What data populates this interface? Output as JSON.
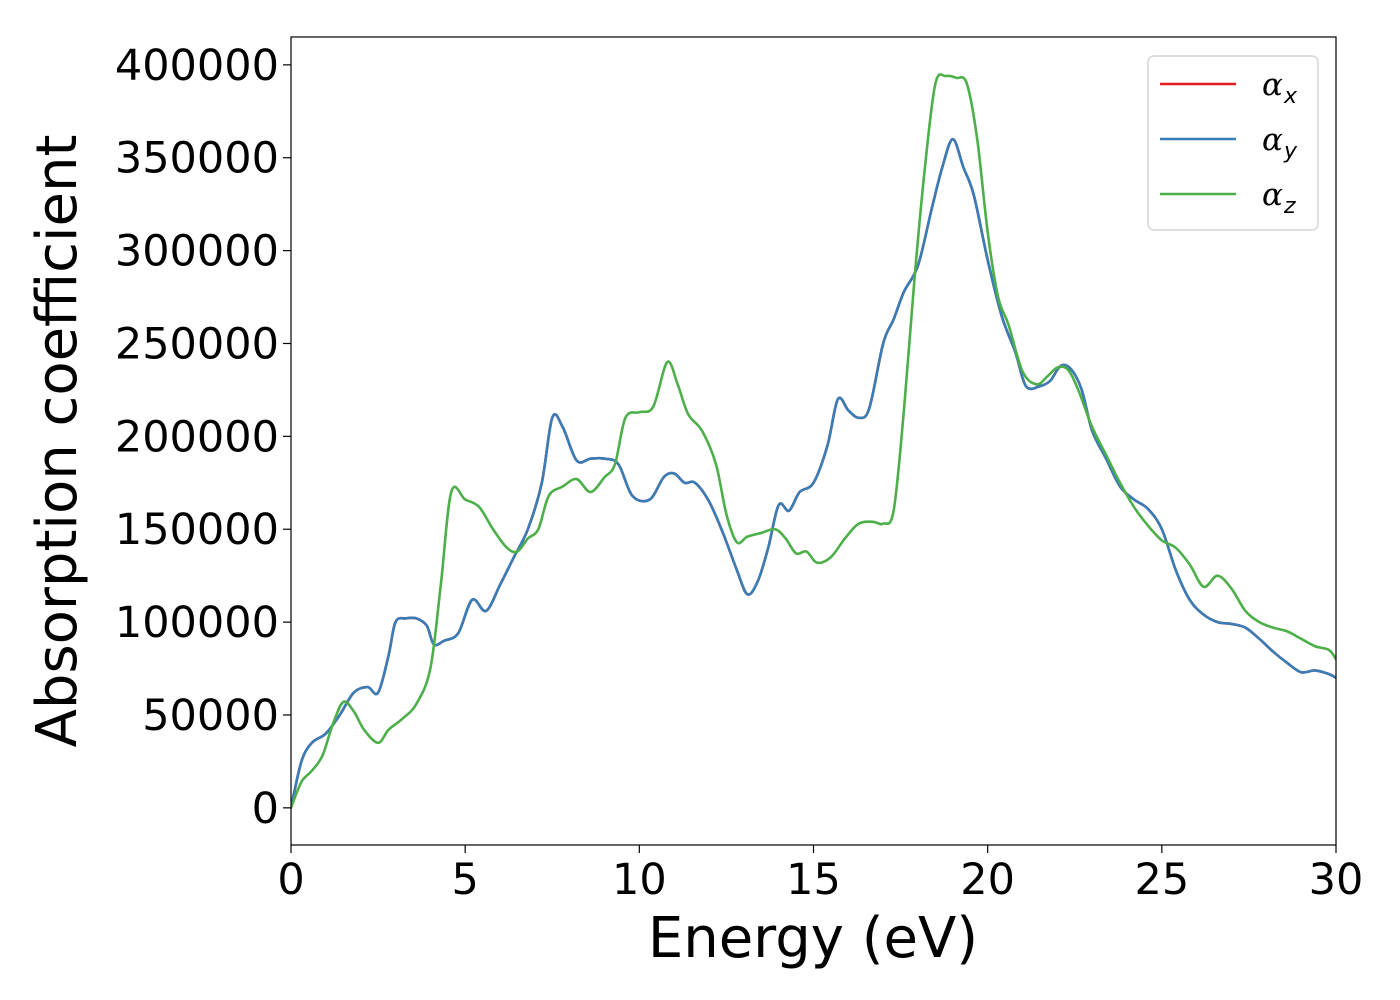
{
  "chart_data": {
    "type": "line",
    "title": "",
    "xlabel": "Energy (eV)",
    "ylabel": "Absorption coefficient",
    "xlim": [
      0,
      30
    ],
    "ylim": [
      -20000,
      415000
    ],
    "xticks": [
      "0",
      "5",
      "10",
      "15",
      "20",
      "25",
      "30"
    ],
    "yticks": [
      "0",
      "50000",
      "100000",
      "150000",
      "200000",
      "250000",
      "300000",
      "350000",
      "400000"
    ],
    "grid": false,
    "legend_position": "top-right",
    "colors": {
      "alpha_x": "#e41a1c",
      "alpha_y": "#377eb8",
      "alpha_z": "#4daf4a"
    },
    "series": [
      {
        "name": "αx",
        "legend_main": "α",
        "legend_sub": "x",
        "color": "#e41a1c",
        "x": [
          0,
          0.3,
          0.6,
          1.0,
          1.4,
          1.8,
          2.2,
          2.5,
          2.8,
          3.0,
          3.3,
          3.6,
          3.9,
          4.1,
          4.4,
          4.8,
          5.2,
          5.6,
          6.0,
          6.4,
          6.8,
          7.2,
          7.5,
          7.8,
          8.2,
          8.6,
          9.0,
          9.4,
          9.8,
          10.3,
          10.7,
          11.0,
          11.3,
          11.6,
          12.0,
          12.4,
          12.8,
          13.1,
          13.4,
          13.7,
          14.0,
          14.3,
          14.6,
          15.0,
          15.4,
          15.7,
          16.0,
          16.3,
          16.6,
          17.0,
          17.3,
          17.6,
          18.0,
          18.4,
          18.7,
          19.0,
          19.3,
          19.6,
          20.0,
          20.4,
          20.8,
          21.1,
          21.5,
          21.8,
          22.1,
          22.4,
          22.7,
          23.0,
          23.4,
          23.8,
          24.2,
          24.6,
          25.0,
          25.4,
          25.8,
          26.2,
          26.6,
          27.0,
          27.4,
          27.8,
          28.2,
          28.6,
          29.0,
          29.4,
          29.8,
          30.0
        ],
        "y": [
          0,
          25000,
          35000,
          40000,
          50000,
          62000,
          65000,
          62000,
          82000,
          100000,
          102000,
          102000,
          98000,
          88000,
          90000,
          94000,
          112000,
          106000,
          120000,
          135000,
          150000,
          175000,
          210000,
          205000,
          187000,
          188000,
          188000,
          185000,
          168000,
          166000,
          178000,
          180000,
          175000,
          175000,
          165000,
          148000,
          128000,
          115000,
          122000,
          140000,
          163000,
          160000,
          170000,
          175000,
          195000,
          220000,
          214000,
          210000,
          215000,
          250000,
          263000,
          278000,
          292000,
          323000,
          345000,
          360000,
          345000,
          330000,
          295000,
          265000,
          245000,
          227000,
          227000,
          230000,
          238000,
          236000,
          225000,
          203000,
          188000,
          173000,
          166000,
          161000,
          150000,
          128000,
          112000,
          104000,
          100000,
          99000,
          97000,
          91000,
          84000,
          78000,
          73000,
          74000,
          72000,
          70000
        ]
      },
      {
        "name": "αy",
        "legend_main": "α",
        "legend_sub": "y",
        "color": "#377eb8",
        "x": [
          0,
          0.3,
          0.6,
          1.0,
          1.4,
          1.8,
          2.2,
          2.5,
          2.8,
          3.0,
          3.3,
          3.6,
          3.9,
          4.1,
          4.4,
          4.8,
          5.2,
          5.6,
          6.0,
          6.4,
          6.8,
          7.2,
          7.5,
          7.8,
          8.2,
          8.6,
          9.0,
          9.4,
          9.8,
          10.3,
          10.7,
          11.0,
          11.3,
          11.6,
          12.0,
          12.4,
          12.8,
          13.1,
          13.4,
          13.7,
          14.0,
          14.3,
          14.6,
          15.0,
          15.4,
          15.7,
          16.0,
          16.3,
          16.6,
          17.0,
          17.3,
          17.6,
          18.0,
          18.4,
          18.7,
          19.0,
          19.3,
          19.6,
          20.0,
          20.4,
          20.8,
          21.1,
          21.5,
          21.8,
          22.1,
          22.4,
          22.7,
          23.0,
          23.4,
          23.8,
          24.2,
          24.6,
          25.0,
          25.4,
          25.8,
          26.2,
          26.6,
          27.0,
          27.4,
          27.8,
          28.2,
          28.6,
          29.0,
          29.4,
          29.8,
          30.0
        ],
        "y": [
          0,
          25000,
          35000,
          40000,
          50000,
          62000,
          65000,
          62000,
          82000,
          100000,
          102000,
          102000,
          98000,
          88000,
          90000,
          94000,
          112000,
          106000,
          120000,
          135000,
          150000,
          175000,
          210000,
          205000,
          187000,
          188000,
          188000,
          185000,
          168000,
          166000,
          178000,
          180000,
          175000,
          175000,
          165000,
          148000,
          128000,
          115000,
          122000,
          140000,
          163000,
          160000,
          170000,
          175000,
          195000,
          220000,
          214000,
          210000,
          215000,
          250000,
          263000,
          278000,
          292000,
          323000,
          345000,
          360000,
          345000,
          330000,
          295000,
          265000,
          245000,
          227000,
          227000,
          230000,
          238000,
          236000,
          225000,
          203000,
          188000,
          173000,
          166000,
          161000,
          150000,
          128000,
          112000,
          104000,
          100000,
          99000,
          97000,
          91000,
          84000,
          78000,
          73000,
          74000,
          72000,
          70000
        ]
      },
      {
        "name": "αz",
        "legend_main": "α",
        "legend_sub": "z",
        "color": "#4daf4a",
        "x": [
          0,
          0.3,
          0.6,
          0.9,
          1.2,
          1.5,
          1.8,
          2.1,
          2.5,
          2.8,
          3.2,
          3.6,
          4.0,
          4.3,
          4.6,
          5.0,
          5.4,
          5.8,
          6.2,
          6.5,
          6.8,
          7.1,
          7.4,
          7.8,
          8.2,
          8.6,
          9.0,
          9.3,
          9.6,
          10.0,
          10.4,
          10.8,
          11.1,
          11.4,
          11.8,
          12.2,
          12.5,
          12.8,
          13.1,
          13.5,
          13.9,
          14.2,
          14.5,
          14.8,
          15.1,
          15.5,
          15.9,
          16.3,
          16.7,
          17.0,
          17.3,
          17.6,
          17.9,
          18.2,
          18.5,
          18.8,
          19.1,
          19.4,
          19.7,
          20.0,
          20.3,
          20.6,
          21.0,
          21.4,
          21.7,
          22.0,
          22.3,
          22.6,
          23.0,
          23.4,
          23.8,
          24.2,
          24.6,
          25.0,
          25.4,
          25.8,
          26.2,
          26.6,
          27.0,
          27.4,
          27.8,
          28.2,
          28.6,
          29.0,
          29.4,
          29.8,
          30.0
        ],
        "y": [
          0,
          14000,
          20000,
          28000,
          45000,
          57000,
          52000,
          42000,
          35000,
          42000,
          48000,
          56000,
          75000,
          120000,
          170000,
          166000,
          162000,
          150000,
          140000,
          138000,
          145000,
          150000,
          168000,
          173000,
          177000,
          170000,
          178000,
          185000,
          210000,
          213000,
          216000,
          240000,
          228000,
          212000,
          203000,
          185000,
          158000,
          143000,
          146000,
          148000,
          150000,
          145000,
          137000,
          138000,
          132000,
          135000,
          145000,
          153000,
          154000,
          153000,
          160000,
          215000,
          285000,
          345000,
          390000,
          394000,
          393000,
          390000,
          360000,
          310000,
          275000,
          260000,
          235000,
          228000,
          232000,
          237000,
          236000,
          225000,
          205000,
          190000,
          175000,
          162000,
          152000,
          144000,
          140000,
          131000,
          119000,
          125000,
          118000,
          106000,
          100000,
          97000,
          95000,
          91000,
          87000,
          85000,
          80000
        ]
      }
    ]
  }
}
